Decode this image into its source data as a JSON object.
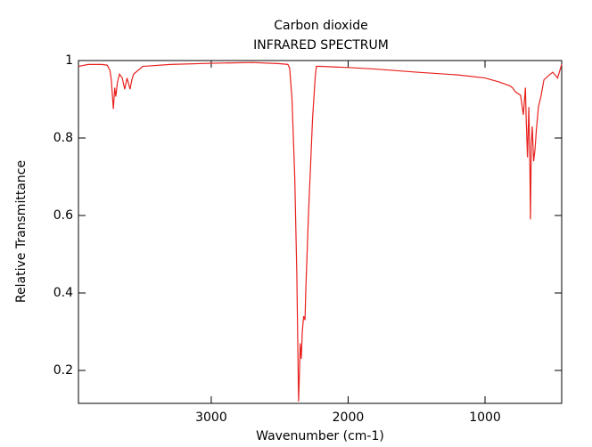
{
  "chart_data": {
    "type": "line",
    "title": "Carbon dioxide",
    "subtitle": "INFRARED SPECTRUM",
    "xlabel": "Wavenumber (cm-1)",
    "ylabel": "Relative Transmittance",
    "color": "#e8211d",
    "x": [
      3970,
      3900,
      3800,
      3760,
      3740,
      3730,
      3715,
      3705,
      3697,
      3685,
      3670,
      3650,
      3632,
      3615,
      3600,
      3593,
      3580,
      3567,
      3500,
      3300,
      3000,
      2700,
      2500,
      2440,
      2427,
      2410,
      2390,
      2375,
      2362,
      2355,
      2350,
      2342,
      2335,
      2325,
      2315,
      2310,
      2290,
      2260,
      2240,
      2232,
      2200,
      2000,
      1800,
      1500,
      1200,
      1000,
      900,
      820,
      800,
      780,
      740,
      720,
      705,
      700,
      690,
      680,
      672,
      668,
      662,
      655,
      645,
      635,
      625,
      610,
      590,
      570,
      540,
      505,
      470,
      440
    ],
    "values": [
      0.985,
      0.99,
      0.99,
      0.988,
      0.975,
      0.95,
      0.875,
      0.93,
      0.907,
      0.945,
      0.965,
      0.955,
      0.926,
      0.955,
      0.935,
      0.926,
      0.95,
      0.965,
      0.985,
      0.99,
      0.993,
      0.995,
      0.992,
      0.99,
      0.98,
      0.9,
      0.7,
      0.45,
      0.12,
      0.2,
      0.27,
      0.23,
      0.3,
      0.34,
      0.33,
      0.4,
      0.6,
      0.85,
      0.96,
      0.985,
      0.985,
      0.982,
      0.978,
      0.97,
      0.963,
      0.955,
      0.945,
      0.935,
      0.93,
      0.92,
      0.91,
      0.86,
      0.93,
      0.857,
      0.75,
      0.88,
      0.72,
      0.59,
      0.78,
      0.83,
      0.74,
      0.77,
      0.82,
      0.88,
      0.91,
      0.95,
      0.96,
      0.97,
      0.955,
      0.99
    ],
    "xlim": [
      3970,
      440
    ],
    "ylim": [
      0.115,
      1
    ],
    "xticks": [
      3000,
      2000,
      1000
    ],
    "yticks": [
      0.2,
      0.4,
      0.6,
      0.8,
      1
    ]
  }
}
